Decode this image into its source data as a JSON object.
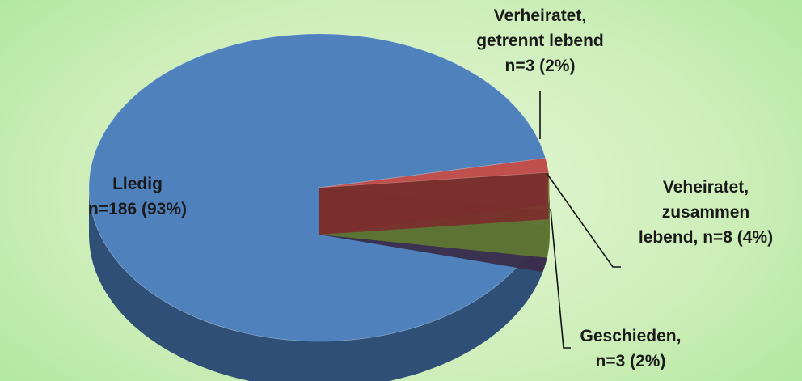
{
  "chart_data": {
    "type": "pie",
    "title": "",
    "slices": [
      {
        "name": "Lledig",
        "value": 186,
        "percent": 93,
        "color": "#4f81bd",
        "side_color": "#2f4f76"
      },
      {
        "name": "Verheiratet, getrennt lebend",
        "value": 3,
        "percent": 2,
        "color": "#c0504d",
        "side_color": "#7a2f2d"
      },
      {
        "name": "Veheiratet, zusammen lebend",
        "value": 8,
        "percent": 4,
        "color": "#9bbb59",
        "side_color": "#5f7733"
      },
      {
        "name": "Geschieden",
        "value": 3,
        "percent": 2,
        "color": "#8064a2",
        "side_color": "#3a2c4a"
      }
    ],
    "labels": {
      "ledig": [
        "Lledig",
        "n=186 (93%)"
      ],
      "getrennt": [
        "Verheiratet,",
        "getrennt lebend",
        "n=3 (2%)"
      ],
      "zusammen": [
        "Veheiratet,",
        "zusammen",
        "lebend, n=8 (4%)"
      ],
      "geschieden": [
        "Geschieden,",
        "n=3 (2%)"
      ]
    },
    "legend": "none",
    "style": "3d-exploded"
  },
  "colors": {
    "background": "#cdeeb9",
    "label_text": "#1a1a1a"
  }
}
